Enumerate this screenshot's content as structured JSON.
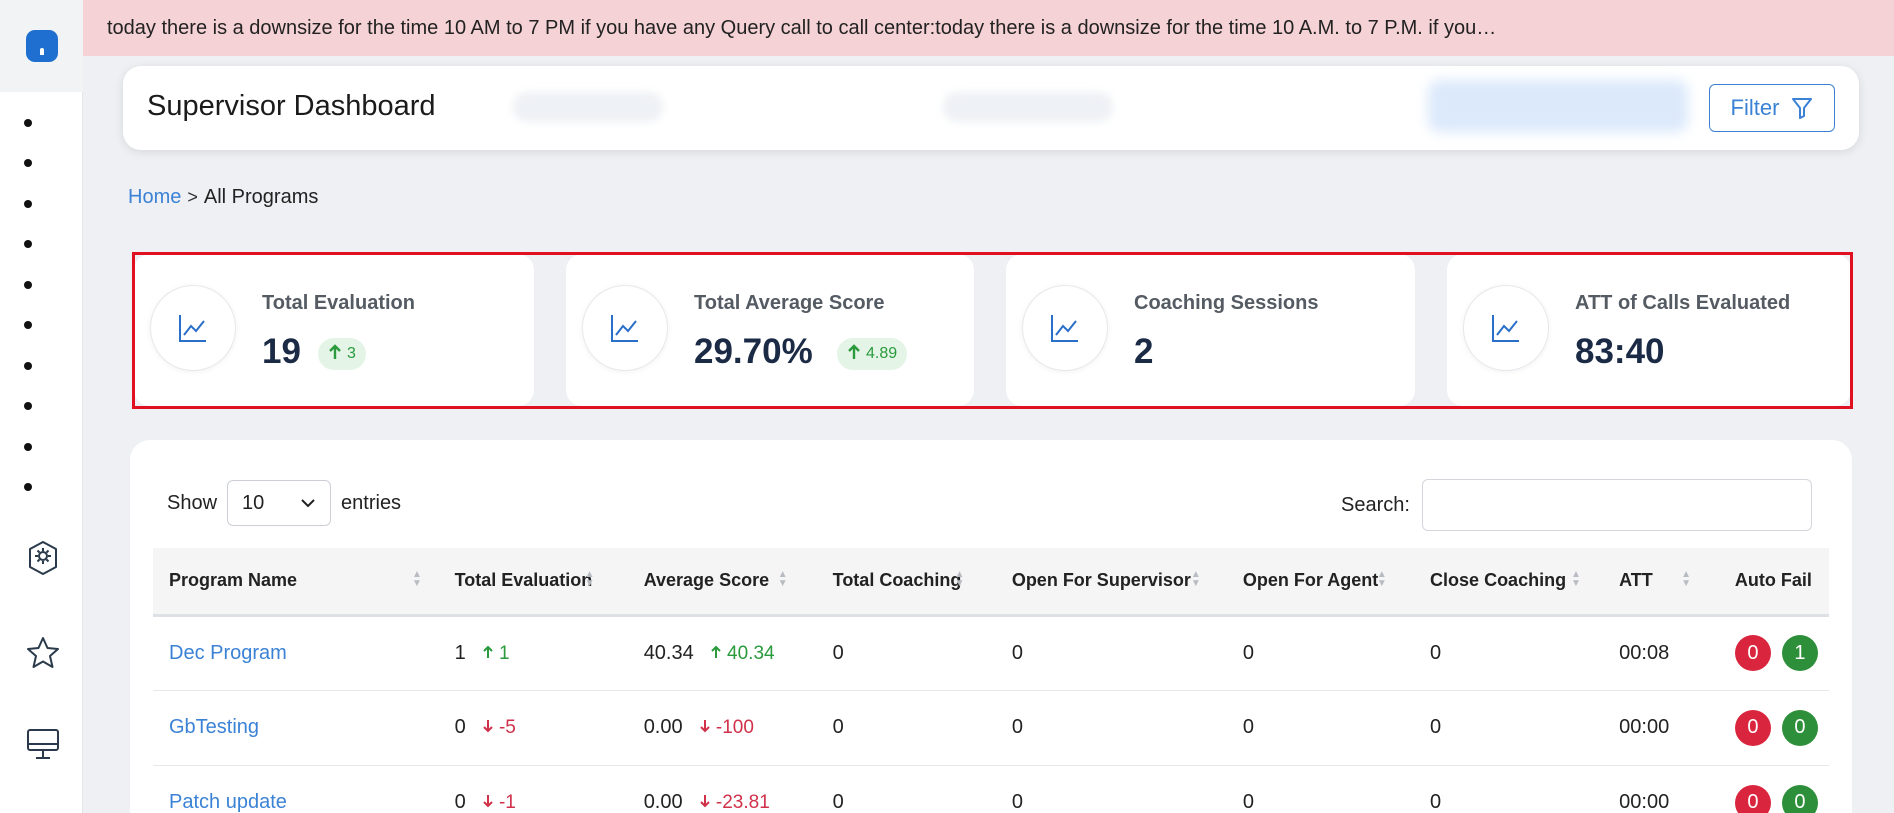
{
  "banner": {
    "text": "today there is a downsize for the time 10 AM to 7 PM if you have any Query call to call center:today there is a downsize for the time 10 A.M. to 7 P.M. if you…"
  },
  "header": {
    "title": "Supervisor Dashboard",
    "filter_label": "Filter"
  },
  "breadcrumb": {
    "home": "Home",
    "separator": ">",
    "current": "All Programs"
  },
  "stats": [
    {
      "label": "Total Evaluation",
      "value": "19",
      "delta": "3"
    },
    {
      "label": "Total Average Score",
      "value": "29.70%",
      "delta": "4.89"
    },
    {
      "label": "Coaching Sessions",
      "value": "2"
    },
    {
      "label": "ATT of Calls Evaluated",
      "value": "83:40"
    }
  ],
  "table_controls": {
    "show_label": "Show",
    "entries_value": "10",
    "entries_label": "entries",
    "search_label": "Search:"
  },
  "table": {
    "columns": [
      "Program Name",
      "Total Evaluation",
      "Average Score",
      "Total Coaching",
      "Open For Supervisor",
      "Open For Agent",
      "Close Coaching",
      "ATT",
      "Auto Fail"
    ],
    "rows": [
      {
        "program": "Dec Program",
        "total_eval": "1",
        "eval_delta": "1",
        "eval_dir": "up",
        "avg_score": "40.34",
        "score_delta": "40.34",
        "score_dir": "up",
        "total_coaching": "0",
        "open_supervisor": "0",
        "open_agent": "0",
        "close_coaching": "0",
        "att": "00:08",
        "fail_red": "0",
        "fail_green": "1"
      },
      {
        "program": "GbTesting",
        "total_eval": "0",
        "eval_delta": "-5",
        "eval_dir": "down",
        "avg_score": "0.00",
        "score_delta": "-100",
        "score_dir": "down",
        "total_coaching": "0",
        "open_supervisor": "0",
        "open_agent": "0",
        "close_coaching": "0",
        "att": "00:00",
        "fail_red": "0",
        "fail_green": "0"
      },
      {
        "program": "Patch update",
        "total_eval": "0",
        "eval_delta": "-1",
        "eval_dir": "down",
        "avg_score": "0.00",
        "score_delta": "-23.81",
        "score_dir": "down",
        "total_coaching": "0",
        "open_supervisor": "0",
        "open_agent": "0",
        "close_coaching": "0",
        "att": "00:00",
        "fail_red": "0",
        "fail_green": "0"
      }
    ]
  },
  "sidebar": {
    "top_icon": "home-icon",
    "dot_count": 10,
    "bottom_icons": [
      "settings-badge-icon",
      "star-icon",
      "monitor-icon"
    ]
  },
  "colors": {
    "accent": "#3b82d6",
    "banner_bg": "#f5d2d5",
    "positive": "#2a9a3c",
    "negative": "#d0304a",
    "highlight_frame": "#e01020"
  }
}
